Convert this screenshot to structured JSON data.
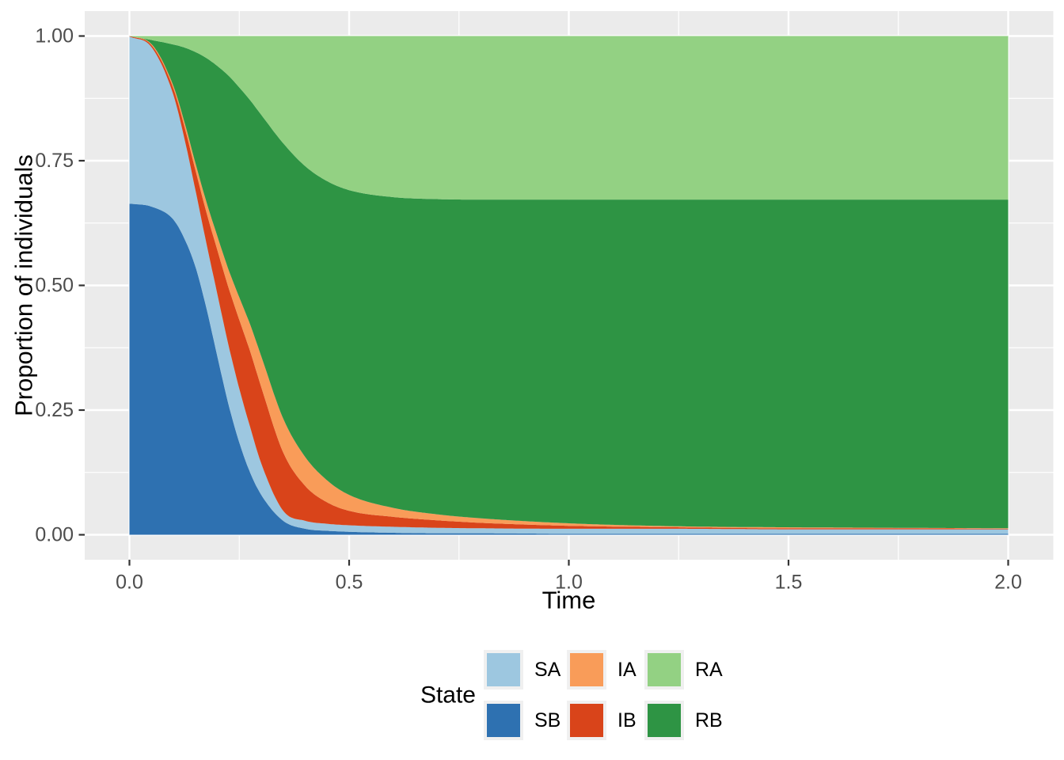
{
  "figure": {
    "kind": "stacked-area-proportion-plot",
    "panel_bg": "#EBEBEB",
    "grid_color": "#FFFFFF",
    "tick_color": "#333333",
    "tick_label_color": "#4D4D4D"
  },
  "chart_data": {
    "type": "area",
    "title": "",
    "xlabel": "Time",
    "ylabel": "Proportion of individuals",
    "legend_title": "State",
    "xlim": [
      0,
      2
    ],
    "ylim": [
      0,
      1
    ],
    "x_tick_labels": [
      "0.0",
      "0.5",
      "1.0",
      "1.5",
      "2.0"
    ],
    "x_tick_values": [
      0,
      0.5,
      1.0,
      1.5,
      2.0
    ],
    "y_tick_labels": [
      "0.00",
      "0.25",
      "0.50",
      "0.75",
      "1.00"
    ],
    "y_tick_values": [
      0,
      0.25,
      0.5,
      0.75,
      1.0
    ],
    "x_minor_values": [
      0.25,
      0.75,
      1.25,
      1.75
    ],
    "y_minor_values": [
      0.125,
      0.375,
      0.625,
      0.875
    ],
    "grid": "on",
    "legend_position": "bottom",
    "stacking_order_bottom_to_top": [
      "SB",
      "SA",
      "IB",
      "IA",
      "RB",
      "RA"
    ],
    "x": [
      0,
      0.05,
      0.1,
      0.125,
      0.15,
      0.175,
      0.2,
      0.225,
      0.25,
      0.275,
      0.3,
      0.35,
      0.4,
      0.45,
      0.5,
      0.6,
      0.7,
      0.8,
      1.0,
      1.25,
      1.5,
      1.75,
      2.0
    ],
    "series": [
      {
        "name": "SB",
        "color": "#2E71B1",
        "values": [
          0.664,
          0.658,
          0.632,
          0.594,
          0.538,
          0.455,
          0.358,
          0.263,
          0.185,
          0.124,
          0.08,
          0.028,
          0.012,
          0.008,
          0.006,
          0.004,
          0.003,
          0.003,
          0.002,
          0.002,
          0.002,
          0.002,
          0.002
        ]
      },
      {
        "name": "SA",
        "color": "#9DC7E0",
        "values": [
          0.335,
          0.32,
          0.25,
          0.201,
          0.154,
          0.13,
          0.125,
          0.119,
          0.108,
          0.091,
          0.063,
          0.02,
          0.016,
          0.014,
          0.013,
          0.012,
          0.011,
          0.01,
          0.01,
          0.01,
          0.009,
          0.009,
          0.009
        ]
      },
      {
        "name": "IB",
        "color": "#D9441A",
        "values": [
          0.001,
          0.004,
          0.013,
          0.024,
          0.04,
          0.062,
          0.088,
          0.115,
          0.138,
          0.152,
          0.153,
          0.117,
          0.07,
          0.043,
          0.029,
          0.02,
          0.015,
          0.011,
          0.006,
          0.003,
          0.002,
          0.002,
          0.001
        ]
      },
      {
        "name": "IA",
        "color": "#F99C59",
        "values": [
          0.0,
          0.002,
          0.005,
          0.009,
          0.014,
          0.021,
          0.028,
          0.036,
          0.045,
          0.054,
          0.062,
          0.068,
          0.058,
          0.044,
          0.032,
          0.018,
          0.012,
          0.009,
          0.005,
          0.002,
          0.002,
          0.001,
          0.001
        ]
      },
      {
        "name": "RB",
        "color": "#2E9444",
        "values": [
          0.0,
          0.008,
          0.083,
          0.149,
          0.222,
          0.288,
          0.341,
          0.388,
          0.421,
          0.45,
          0.484,
          0.552,
          0.583,
          0.6,
          0.611,
          0.623,
          0.632,
          0.639,
          0.649,
          0.655,
          0.657,
          0.658,
          0.659
        ]
      },
      {
        "name": "RA",
        "color": "#93D183",
        "values": [
          0.0,
          0.008,
          0.017,
          0.023,
          0.032,
          0.044,
          0.06,
          0.079,
          0.103,
          0.129,
          0.158,
          0.215,
          0.261,
          0.291,
          0.309,
          0.323,
          0.327,
          0.328,
          0.328,
          0.328,
          0.328,
          0.328,
          0.328
        ]
      }
    ],
    "legend_entries": [
      {
        "label": "SA",
        "color": "#9DC7E0"
      },
      {
        "label": "SB",
        "color": "#2E71B1"
      },
      {
        "label": "IA",
        "color": "#F99C59"
      },
      {
        "label": "IB",
        "color": "#D9441A"
      },
      {
        "label": "RA",
        "color": "#93D183"
      },
      {
        "label": "RB",
        "color": "#2E9444"
      }
    ]
  }
}
